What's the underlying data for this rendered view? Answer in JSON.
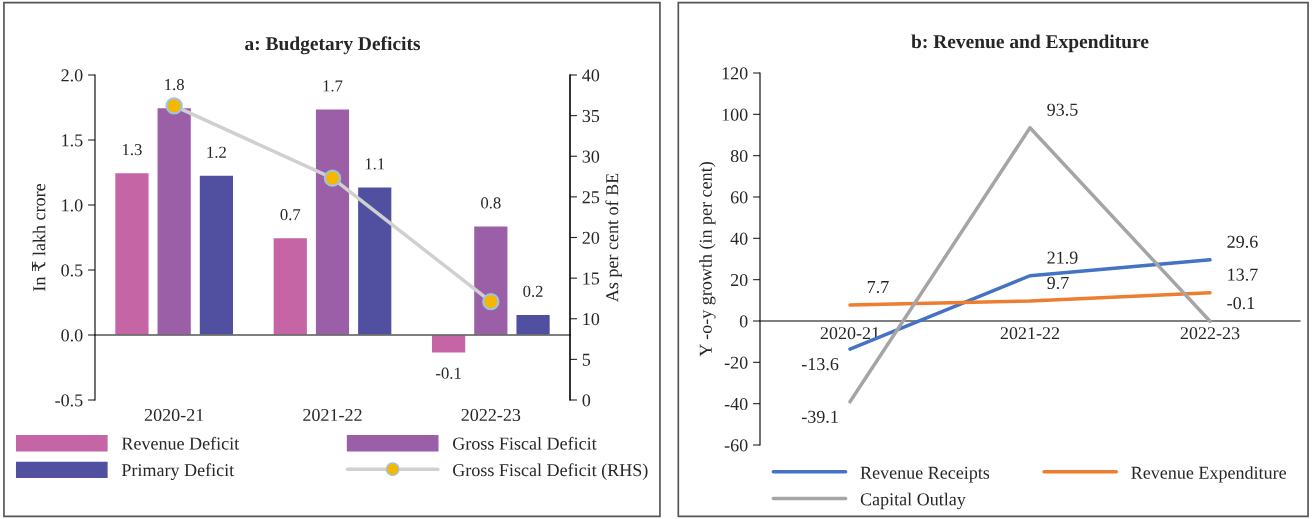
{
  "chart_data": [
    {
      "type": "bar",
      "title": "a: Budgetary Deficits",
      "ylabel": "In ₹ lakh crore",
      "y2label": "As per cent of BE",
      "categories": [
        "2020-21",
        "2021-22",
        "2022-23"
      ],
      "series": [
        {
          "name": "Revenue Deficit",
          "color": "#c565a6",
          "values": [
            1.25,
            0.75,
            -0.14
          ],
          "value_labels": [
            "1.3",
            "0.7",
            "-0.1"
          ]
        },
        {
          "name": "Gross Fiscal Deficit",
          "color": "#9b5fa8",
          "values": [
            1.75,
            1.74,
            0.84
          ],
          "value_labels": [
            "1.8",
            "1.7",
            "0.8"
          ]
        },
        {
          "name": "Primary Deficit",
          "color": "#5150a0",
          "values": [
            1.23,
            1.14,
            0.16
          ],
          "value_labels": [
            "1.2",
            "1.1",
            "0.2"
          ]
        },
        {
          "name": "Gross Fiscal Deficit (RHS)",
          "type": "line",
          "axis": "y2",
          "color": "#d0d0d0",
          "marker": "circle",
          "values": [
            36.2,
            27.3,
            12.1
          ]
        }
      ],
      "ylim": [
        -0.5,
        2.0
      ],
      "yticks": [
        {
          "value": -0.5,
          "label": "-0.5"
        },
        {
          "value": 0.0,
          "label": "0.0"
        },
        {
          "value": 0.5,
          "label": "0.5"
        },
        {
          "value": 1.0,
          "label": "1.0"
        },
        {
          "value": 1.5,
          "label": "1.5"
        },
        {
          "value": 2.0,
          "label": "2.0"
        }
      ],
      "y2lim": [
        0,
        40
      ],
      "y2ticks": [
        0,
        5,
        10,
        15,
        20,
        25,
        30,
        35,
        40
      ],
      "legend": "bottom"
    },
    {
      "type": "line",
      "title": "b: Revenue and Expenditure",
      "ylabel": "Y -o-y growth (in per cent)",
      "categories": [
        "2020-21",
        "2021-22",
        "2022-23"
      ],
      "series": [
        {
          "name": "Revenue Receipts",
          "color": "#4472c4",
          "values": [
            -13.6,
            21.9,
            29.6
          ]
        },
        {
          "name": "Revenue Expenditure",
          "color": "#ed7d31",
          "values": [
            7.7,
            9.7,
            13.7
          ]
        },
        {
          "name": "Capital Outlay",
          "color": "#a5a5a5",
          "values": [
            -39.1,
            93.5,
            -0.1
          ]
        }
      ],
      "ylim": [
        -60,
        120
      ],
      "yticks": [
        {
          "value": -60,
          "label": "-60"
        },
        {
          "value": -40,
          "label": "-40"
        },
        {
          "value": -20,
          "label": "-20"
        },
        0,
        20,
        40,
        60,
        80,
        100,
        120
      ],
      "data_labels": true,
      "grid": false,
      "legend": "bottom",
      "marker": "none",
      "line_style": "solid"
    }
  ]
}
